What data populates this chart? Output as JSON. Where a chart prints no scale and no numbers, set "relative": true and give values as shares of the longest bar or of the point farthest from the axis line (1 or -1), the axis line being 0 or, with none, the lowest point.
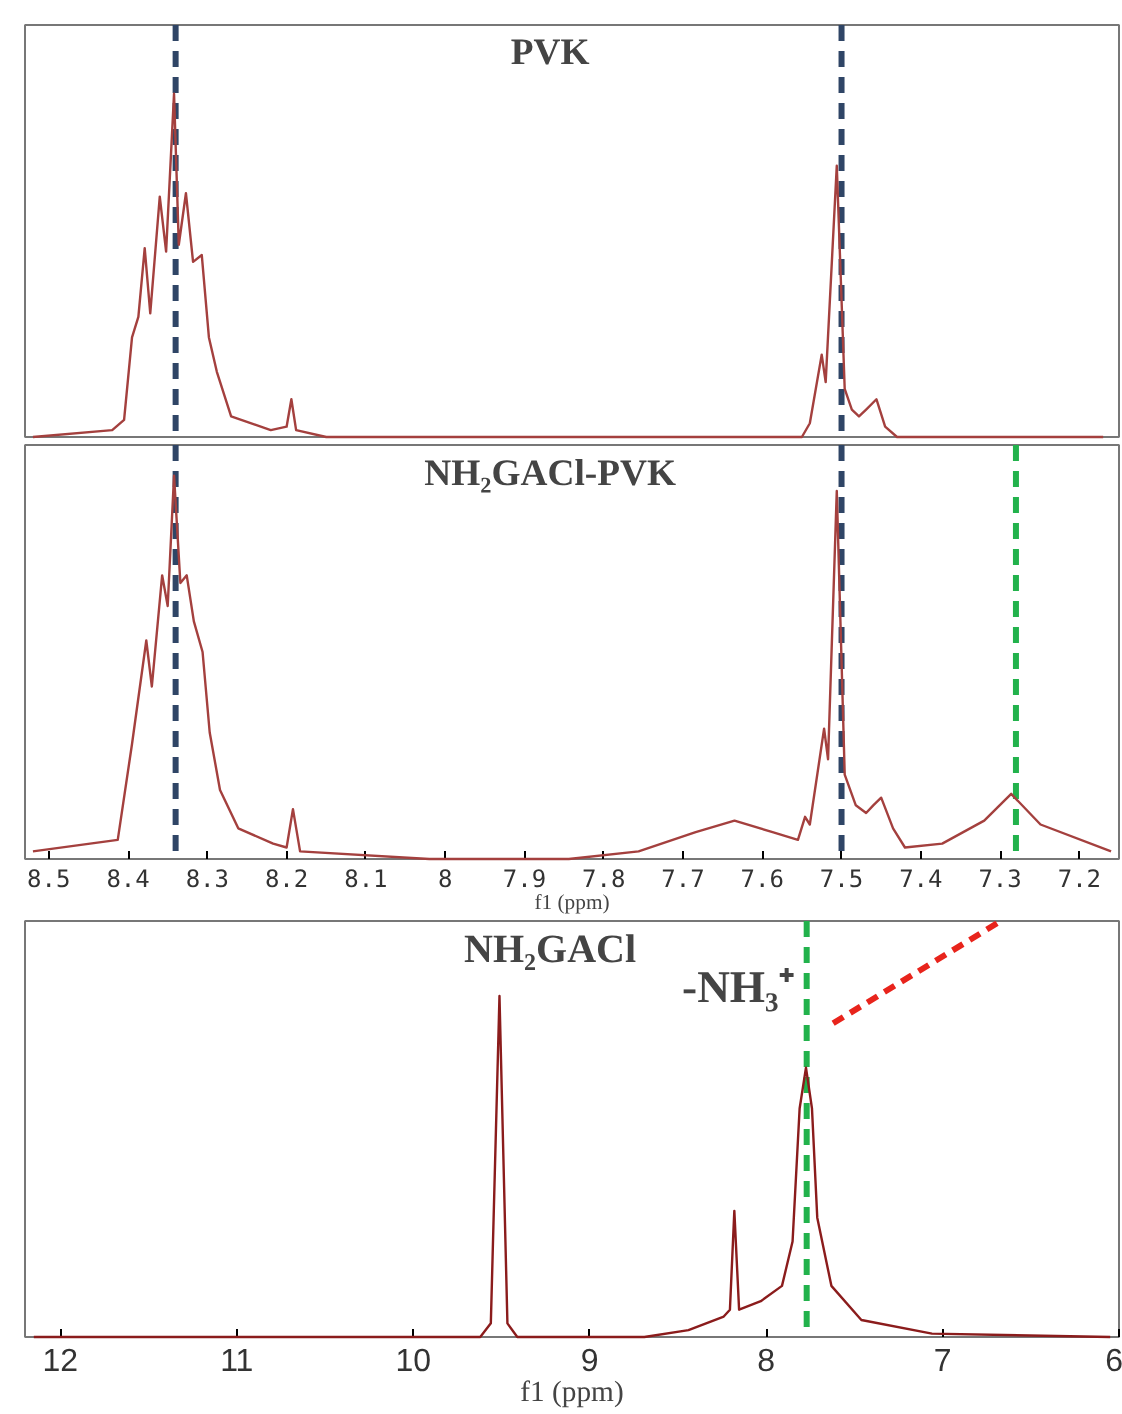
{
  "chart_data": [
    {
      "type": "line",
      "title": "PVK",
      "relative": true,
      "xlim": [
        8.53,
        7.15
      ],
      "tick_labels": false,
      "xticks": [
        8.5,
        8.4,
        8.3,
        8.2,
        8.1,
        8.0,
        7.9,
        7.8,
        7.7,
        7.6,
        7.5,
        7.4,
        7.3,
        7.2
      ],
      "series": [
        {
          "color": "#a4403e",
          "x": [
            8.52,
            8.42,
            8.405,
            8.395,
            8.387,
            8.379,
            8.372,
            8.36,
            8.352,
            8.342,
            8.336,
            8.327,
            8.318,
            8.307,
            8.298,
            8.288,
            8.27,
            8.22,
            8.2,
            8.194,
            8.188,
            8.15,
            7.55,
            7.54,
            7.525,
            7.52,
            7.506,
            7.496,
            7.487,
            7.478,
            7.469,
            7.456,
            7.445,
            7.43,
            7.17
          ],
          "values": [
            0,
            0.02,
            0.05,
            0.29,
            0.35,
            0.55,
            0.36,
            0.7,
            0.54,
            1.0,
            0.56,
            0.71,
            0.51,
            0.53,
            0.29,
            0.19,
            0.06,
            0.02,
            0.03,
            0.11,
            0.02,
            0,
            0,
            0.04,
            0.24,
            0.16,
            0.79,
            0.14,
            0.08,
            0.06,
            0.08,
            0.11,
            0.03,
            0,
            0
          ]
        }
      ],
      "ref_lines": [
        {
          "axis": "x",
          "value": 8.34,
          "color": "#2f4566",
          "line_style": "dashed"
        },
        {
          "axis": "x",
          "value": 7.5,
          "color": "#2f4566",
          "line_style": "dashed"
        }
      ]
    },
    {
      "type": "line",
      "title": "NH₂GACl-PVK",
      "relative": true,
      "xlim": [
        8.53,
        7.15
      ],
      "xlabel": "f1 (ppm)",
      "xticks": [
        8.5,
        8.4,
        8.3,
        8.2,
        8.1,
        8.0,
        7.9,
        7.8,
        7.7,
        7.6,
        7.5,
        7.4,
        7.3,
        7.2
      ],
      "series": [
        {
          "color": "#a4403e",
          "x": [
            8.52,
            8.413,
            8.395,
            8.377,
            8.37,
            8.357,
            8.35,
            8.342,
            8.334,
            8.326,
            8.317,
            8.306,
            8.297,
            8.284,
            8.261,
            8.217,
            8.2,
            8.192,
            8.183,
            8.02,
            7.844,
            7.756,
            7.684,
            7.635,
            7.587,
            7.555,
            7.546,
            7.54,
            7.522,
            7.517,
            7.506,
            7.496,
            7.482,
            7.469,
            7.46,
            7.45,
            7.435,
            7.42,
            7.373,
            7.32,
            7.286,
            7.249,
            7.16
          ],
          "values": [
            0.02,
            0.05,
            0.3,
            0.57,
            0.45,
            0.74,
            0.66,
            1.0,
            0.72,
            0.74,
            0.62,
            0.54,
            0.33,
            0.18,
            0.08,
            0.04,
            0.03,
            0.13,
            0.02,
            0,
            0,
            0.02,
            0.07,
            0.1,
            0.07,
            0.05,
            0.11,
            0.09,
            0.34,
            0.26,
            0.96,
            0.22,
            0.14,
            0.12,
            0.14,
            0.16,
            0.08,
            0.03,
            0.04,
            0.1,
            0.17,
            0.09,
            0.02
          ]
        }
      ],
      "ref_lines": [
        {
          "axis": "x",
          "value": 8.34,
          "color": "#2f4566",
          "line_style": "dashed"
        },
        {
          "axis": "x",
          "value": 7.5,
          "color": "#2f4566",
          "line_style": "dashed"
        },
        {
          "axis": "x",
          "value": 7.28,
          "color": "#22b24c",
          "line_style": "dashed"
        }
      ]
    },
    {
      "type": "line",
      "title": "NH₂GACl",
      "relative": true,
      "xlim": [
        12.2,
        6.0
      ],
      "xlabel": "f1 (ppm)",
      "xticks": [
        12,
        11,
        10,
        9,
        8,
        7,
        6
      ],
      "annotations": [
        "-NH₃⁺"
      ],
      "series": [
        {
          "color": "#8b1c1c",
          "x": [
            12.15,
            9.62,
            9.56,
            9.511,
            9.466,
            9.41,
            8.69,
            8.44,
            8.24,
            8.205,
            8.18,
            8.153,
            8.03,
            7.91,
            7.85,
            7.81,
            7.774,
            7.74,
            7.71,
            7.63,
            7.46,
            7.06,
            6.05
          ],
          "values": [
            0,
            0,
            0.04,
            1.0,
            0.04,
            0,
            0,
            0.02,
            0.06,
            0.08,
            0.37,
            0.08,
            0.105,
            0.15,
            0.28,
            0.67,
            0.79,
            0.67,
            0.35,
            0.15,
            0.05,
            0.01,
            0
          ]
        }
      ],
      "ref_lines": [
        {
          "axis": "x",
          "value": 7.77,
          "color": "#22b24c",
          "line_style": "dashed"
        }
      ]
    }
  ]
}
